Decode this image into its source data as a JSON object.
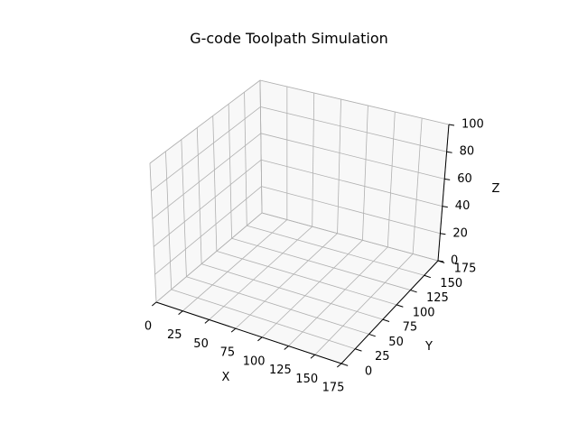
{
  "chart_data": {
    "type": "line",
    "projection": "3d",
    "title": "G-code Toolpath Simulation",
    "xlabel": "X",
    "ylabel": "Y",
    "zlabel": "Z",
    "x_ticks": [
      "0",
      "25",
      "50",
      "75",
      "100",
      "125",
      "150",
      "175"
    ],
    "y_ticks": [
      "0",
      "25",
      "50",
      "75",
      "100",
      "125",
      "150",
      "175"
    ],
    "z_ticks": [
      "0",
      "20",
      "40",
      "60",
      "80",
      "100"
    ],
    "xlim": [
      0,
      175
    ],
    "ylim": [
      0,
      175
    ],
    "zlim": [
      0,
      100
    ],
    "grid": true,
    "series": []
  }
}
